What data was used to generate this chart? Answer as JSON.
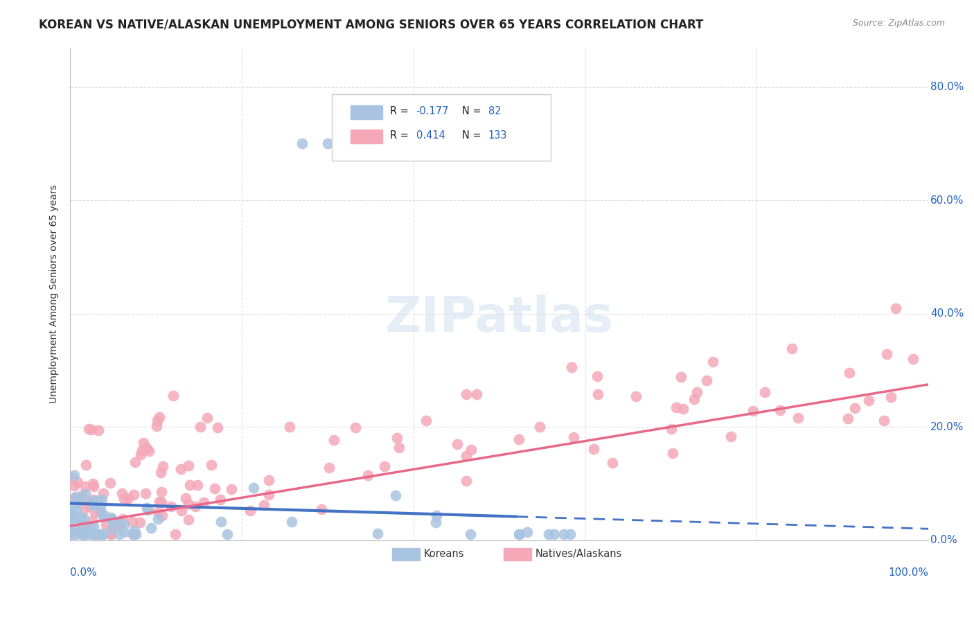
{
  "title": "KOREAN VS NATIVE/ALASKAN UNEMPLOYMENT AMONG SENIORS OVER 65 YEARS CORRELATION CHART",
  "source": "Source: ZipAtlas.com",
  "ylabel": "Unemployment Among Seniors over 65 years",
  "ytick_values": [
    0,
    0.2,
    0.4,
    0.6,
    0.8
  ],
  "ytick_labels": [
    "0.0%",
    "20.0%",
    "40.0%",
    "60.0%",
    "80.0%"
  ],
  "xlim": [
    0,
    1.0
  ],
  "ylim": [
    0,
    0.87
  ],
  "korean_R": -0.177,
  "korean_N": 82,
  "native_R": 0.414,
  "native_N": 133,
  "korean_color": "#a8c4e0",
  "native_color": "#f4a8b8",
  "korean_line_color": "#4472c4",
  "native_line_color": "#e8688a",
  "legend_color": "#2060c0",
  "watermark_text": "ZIPatlas",
  "background_color": "#ffffff",
  "grid_color": "#dddddd"
}
